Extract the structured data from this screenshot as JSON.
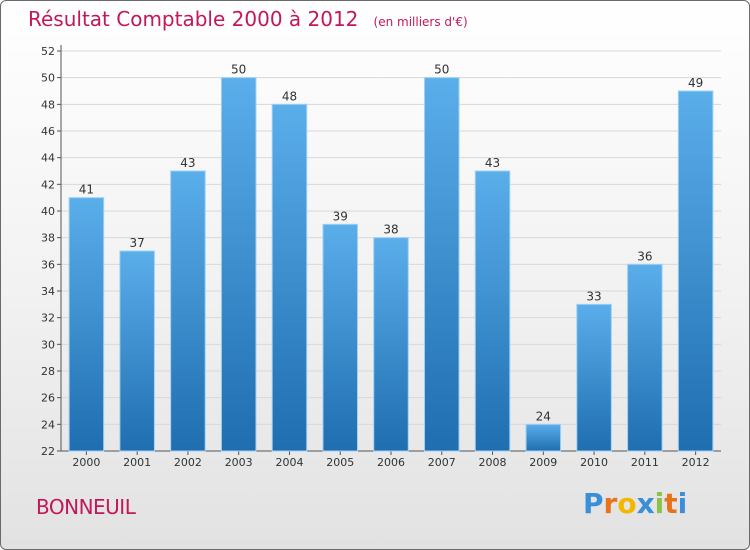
{
  "header": {
    "title": "Résultat Comptable 2000 à 2012",
    "subtitle": "(en milliers d'€)"
  },
  "footer": {
    "commune": "BONNEUIL",
    "logo_letters": [
      "P",
      "r",
      "o",
      "x",
      "i",
      "t",
      "i"
    ],
    "logo_colors": [
      "#3a8fd8",
      "#e8731c",
      "#f2b800",
      "#3a8fd8",
      "#8bc34a",
      "#e8731c",
      "#3a8fd8"
    ]
  },
  "colors": {
    "bar_top": "#5aaeea",
    "bar_bottom": "#1f6eb0",
    "title": "#c2185b",
    "grid": "#d8d8d8"
  },
  "chart_data": {
    "type": "bar",
    "title": "Résultat Comptable 2000 à 2012",
    "subtitle": "(en milliers d'€)",
    "xlabel": "",
    "ylabel": "",
    "categories": [
      "2000",
      "2001",
      "2002",
      "2003",
      "2004",
      "2005",
      "2006",
      "2007",
      "2008",
      "2009",
      "2010",
      "2011",
      "2012"
    ],
    "values": [
      41,
      37,
      43,
      50,
      48,
      39,
      38,
      50,
      43,
      24,
      33,
      36,
      49
    ],
    "ylim": [
      22,
      52
    ],
    "yticks": [
      22,
      24,
      26,
      28,
      30,
      32,
      34,
      36,
      38,
      40,
      42,
      44,
      46,
      48,
      50,
      52
    ],
    "grid": true,
    "data_labels": true
  }
}
